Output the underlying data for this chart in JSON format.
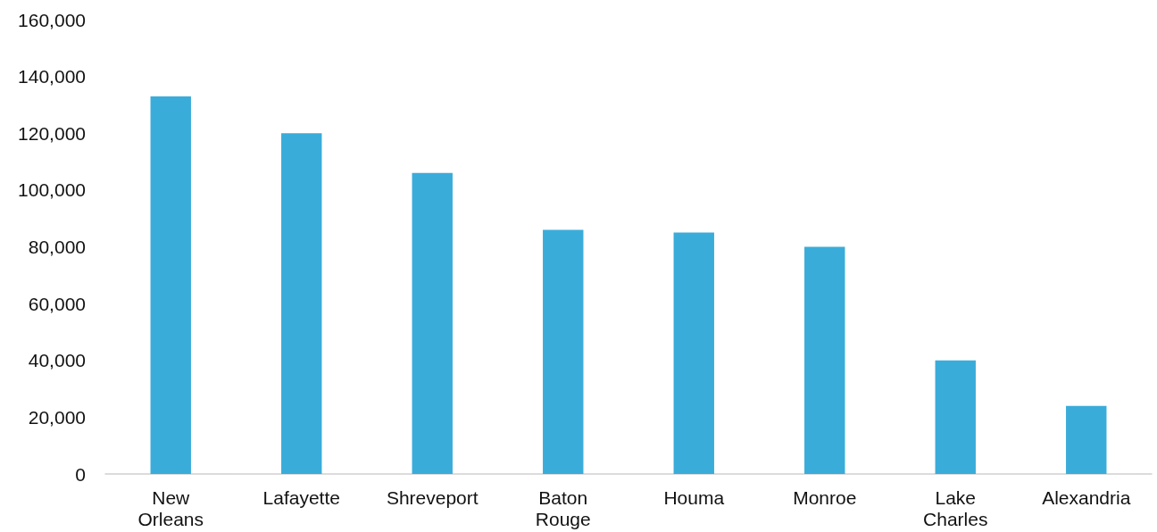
{
  "chart_data": {
    "type": "bar",
    "categories": [
      "New Orleans",
      "Lafayette",
      "Shreveport",
      "Baton Rouge",
      "Houma",
      "Monroe",
      "Lake Charles",
      "Alexandria"
    ],
    "values": [
      133000,
      120000,
      106000,
      86000,
      85000,
      80000,
      40000,
      24000
    ],
    "color": "#3aacda",
    "ylim": [
      0,
      160000
    ],
    "yticks": [
      0,
      {
        "value": 20000,
        "label": "20,000"
      },
      {
        "value": 40000,
        "label": "40,000"
      },
      {
        "value": 60000,
        "label": "60,000"
      },
      {
        "value": 80000,
        "label": "80,000"
      },
      {
        "value": 100000,
        "label": "100,000"
      },
      {
        "value": 120000,
        "label": "120,000"
      },
      {
        "value": 140000,
        "label": "140,000"
      },
      {
        "value": 160000,
        "label": "160,000"
      }
    ],
    "grid": false
  }
}
